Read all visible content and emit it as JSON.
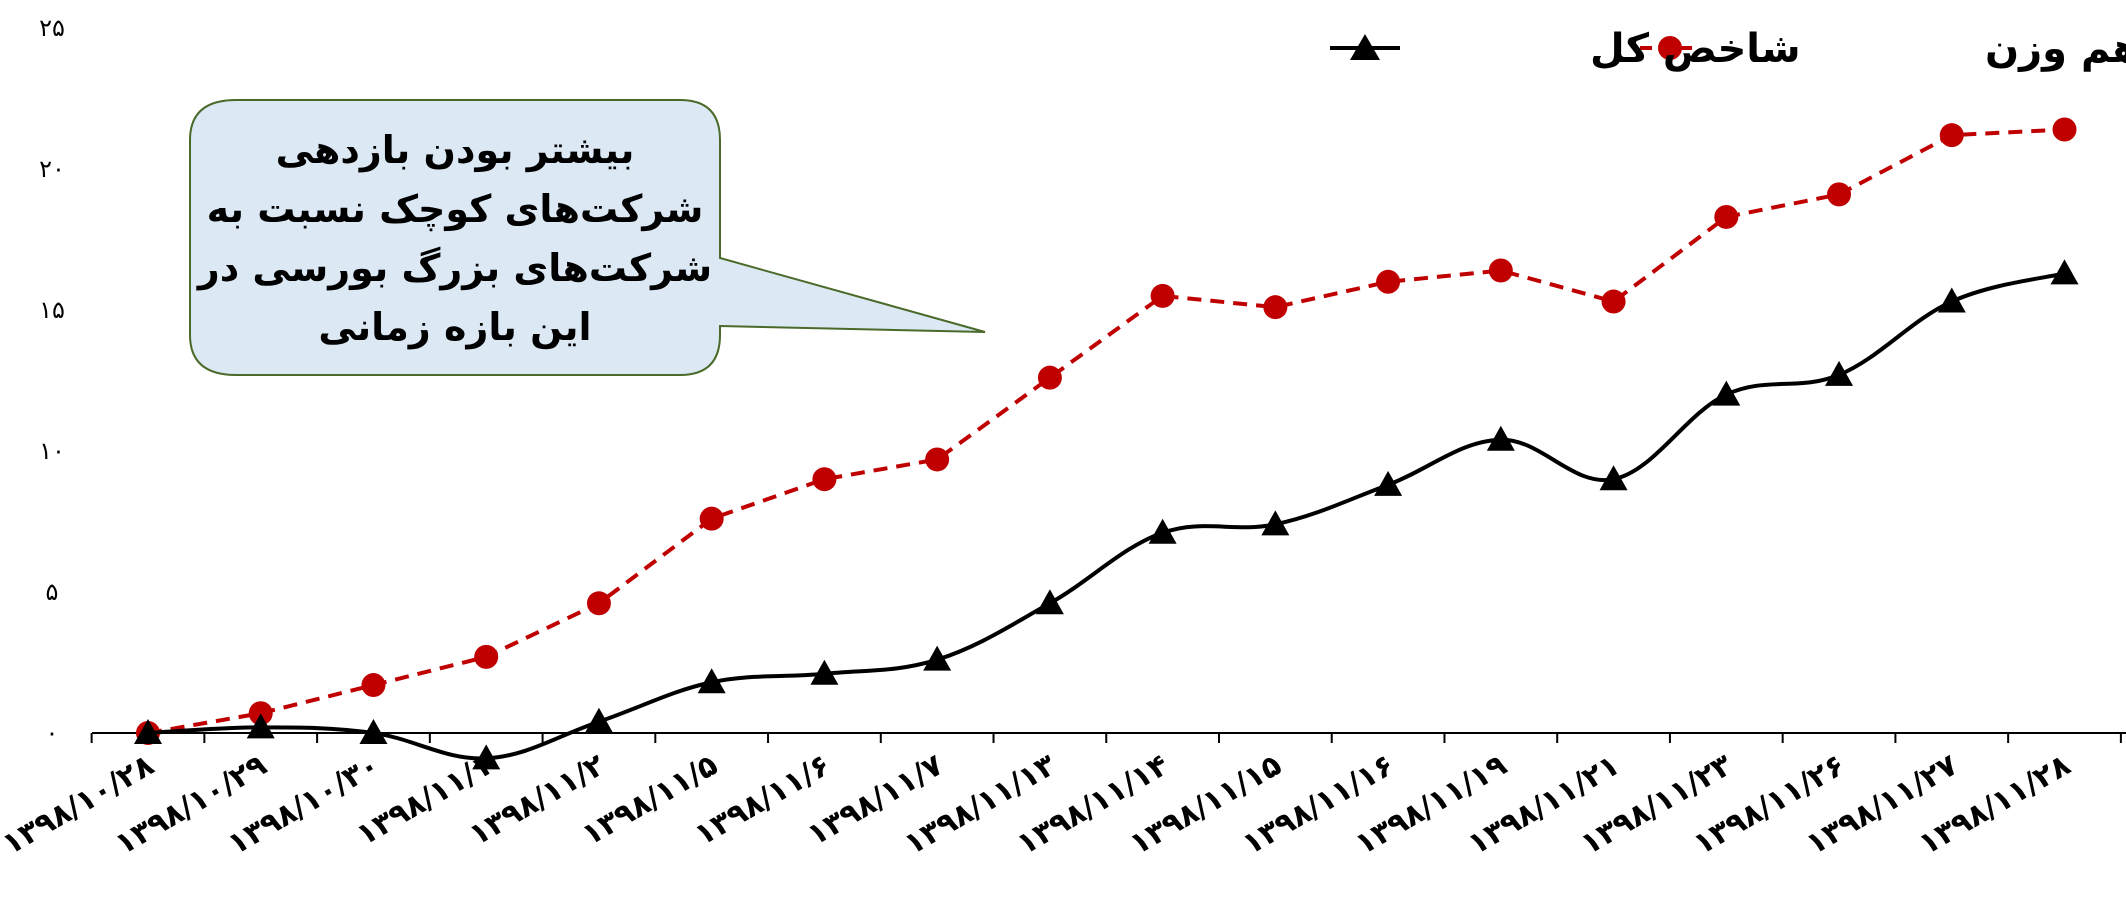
{
  "chart_data": {
    "type": "line",
    "categories": [
      "۱۳۹۸/۱۰/۲۸",
      "۱۳۹۸/۱۰/۲۹",
      "۱۳۹۸/۱۰/۳۰",
      "۱۳۹۸/۱۱/۱",
      "۱۳۹۸/۱۱/۲",
      "۱۳۹۸/۱۱/۵",
      "۱۳۹۸/۱۱/۶",
      "۱۳۹۸/۱۱/۷",
      "۱۳۹۸/۱۱/۱۳",
      "۱۳۹۸/۱۱/۱۴",
      "۱۳۹۸/۱۱/۱۵",
      "۱۳۹۸/۱۱/۱۶",
      "۱۳۹۸/۱۱/۱۹",
      "۱۳۹۸/۱۱/۲۱",
      "۱۳۹۸/۱۱/۲۳",
      "۱۳۹۸/۱۱/۲۶",
      "۱۳۹۸/۱۱/۲۷",
      "۱۳۹۸/۱۱/۲۸"
    ],
    "series": [
      {
        "name": "شاخص کل",
        "color": "#000000",
        "marker": "triangle",
        "line_style": "solid",
        "values": [
          0,
          0.2,
          0,
          -0.9,
          0.4,
          1.8,
          2.1,
          2.6,
          4.6,
          7.1,
          7.4,
          8.8,
          10.4,
          9.0,
          12.0,
          12.7,
          15.3,
          16.3
        ]
      },
      {
        "name": "شاخص هم وزن",
        "color": "#c00000",
        "marker": "circle",
        "line_style": "dashed",
        "values": [
          0,
          0.7,
          1.7,
          2.7,
          4.6,
          7.6,
          9.0,
          9.7,
          12.6,
          15.5,
          15.1,
          16.0,
          16.4,
          15.3,
          18.3,
          19.1,
          21.2,
          21.4
        ]
      }
    ],
    "y_ticks": [
      "۰",
      "۵",
      "۱۰",
      "۱۵",
      "۲۰",
      "۲۵"
    ],
    "ylim": [
      0,
      25
    ],
    "grid": false,
    "legend_position": "top-right",
    "annotation": {
      "lines": [
        "بیشتر بودن بازدهی",
        "شرکت‌های کوچک نسبت به",
        "شرکت‌های بزرگ بورسی در",
        "این بازه زمانی"
      ],
      "fill": "#dce8f4",
      "border": "#4a6a2a"
    }
  }
}
